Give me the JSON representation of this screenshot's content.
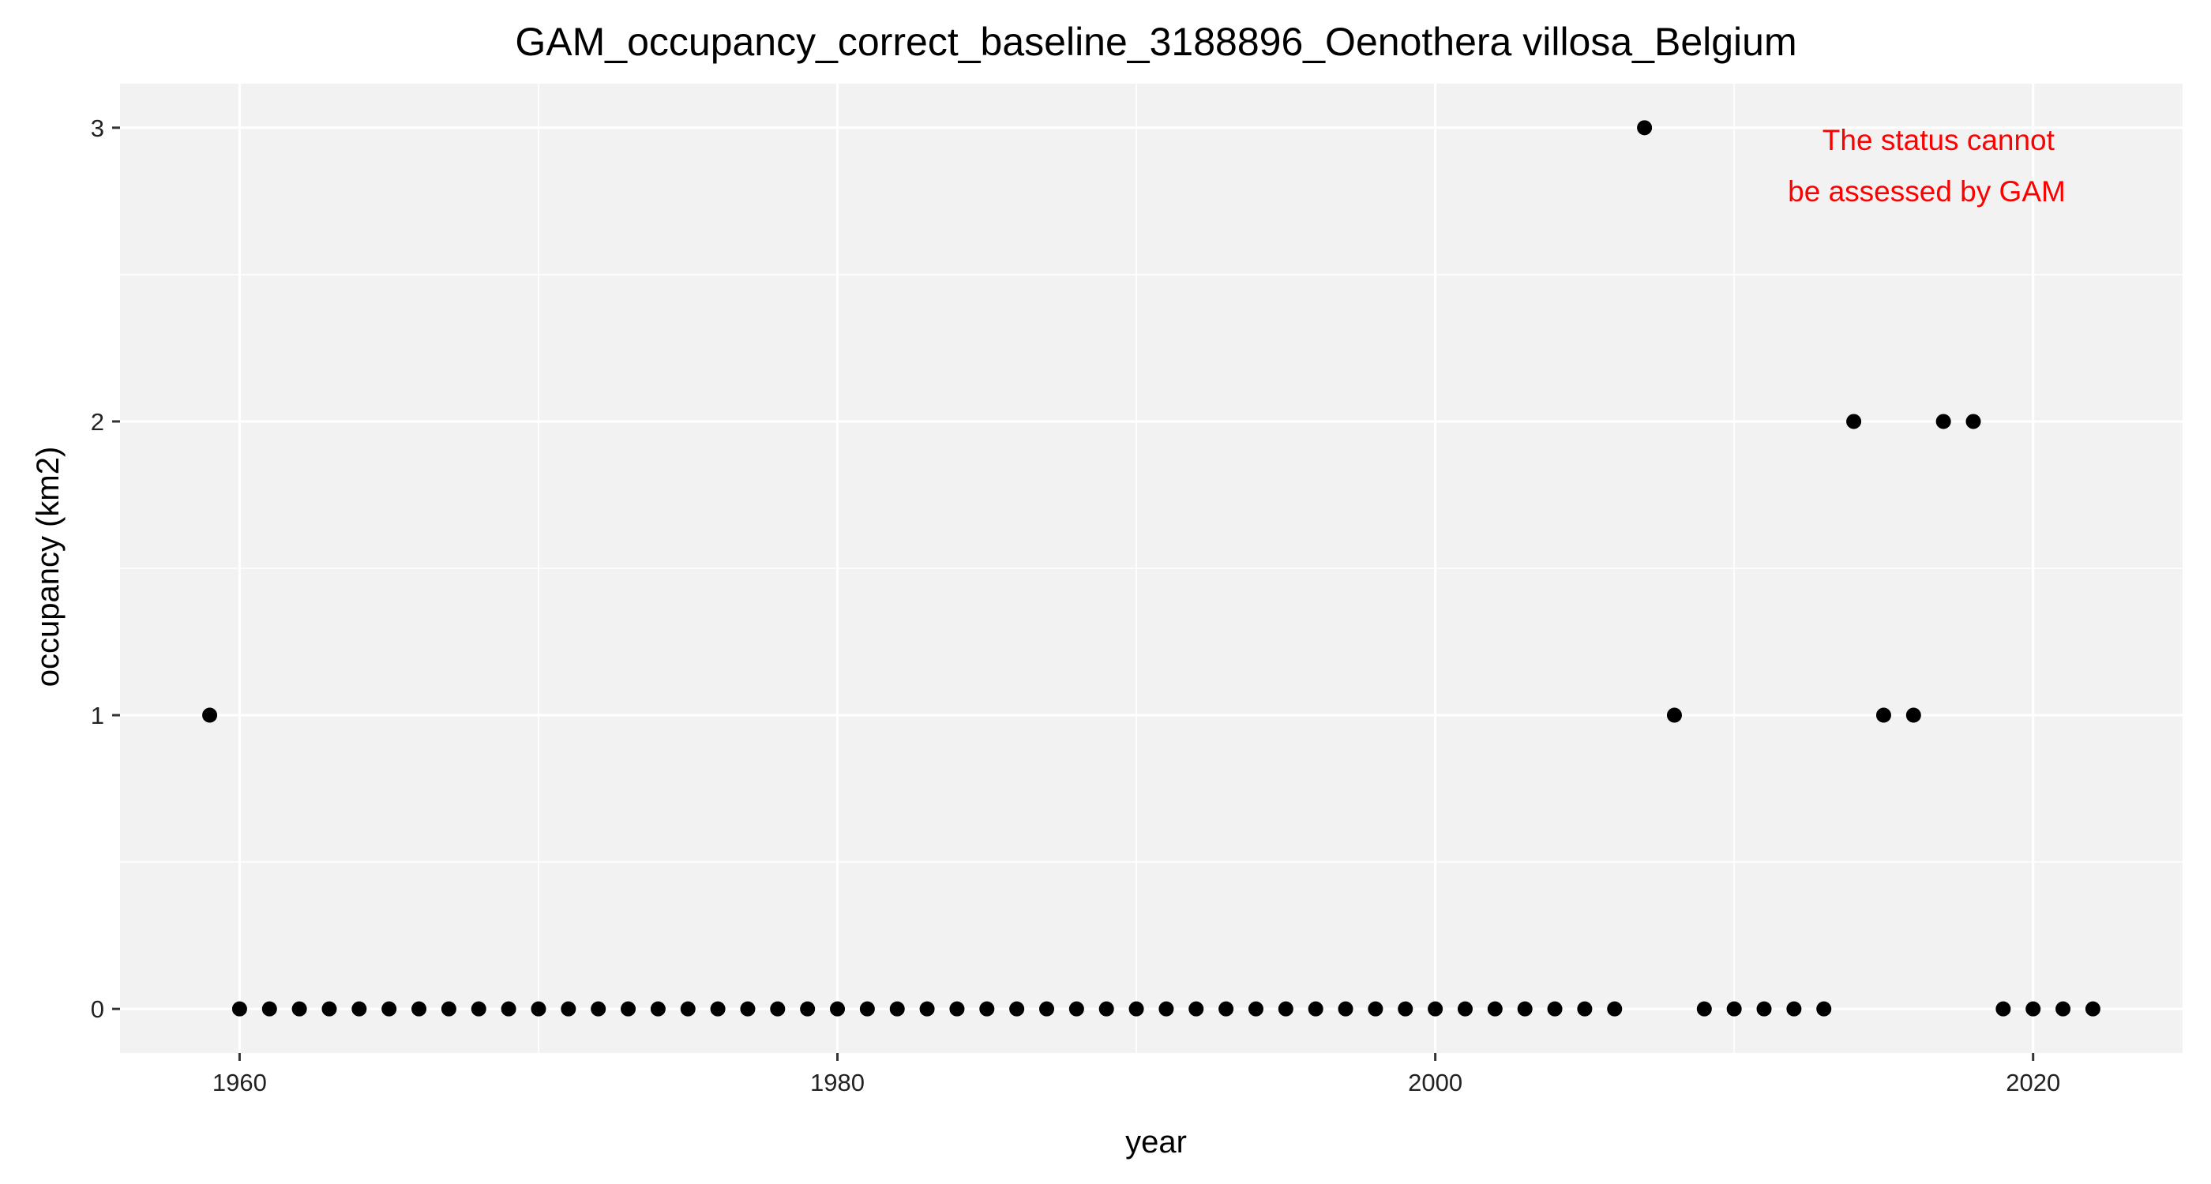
{
  "chart_data": {
    "type": "scatter",
    "title": "GAM_occupancy_correct_baseline_3188896_Oenothera villosa_Belgium",
    "xlabel": "year",
    "ylabel": "occupancy (km2)",
    "xlim": [
      1956,
      2025
    ],
    "ylim": [
      -0.15,
      3.15
    ],
    "x_ticks": [
      1960,
      1980,
      2000,
      2020
    ],
    "x_tick_labels": [
      "1960",
      "1980",
      "2000",
      "2020"
    ],
    "y_ticks": [
      0,
      1,
      2,
      3
    ],
    "y_tick_labels": [
      "0",
      "1",
      "2",
      "3"
    ],
    "grid": true,
    "legend": "none",
    "colors": {
      "panel": "#f2f2f2",
      "grid": "#ffffff",
      "point": "#000000",
      "annotation": "#ff0000"
    },
    "annotation": {
      "lines": [
        "The status cannot",
        "be assessed by GAM"
      ],
      "color": "#ff0000"
    },
    "x": [
      1959,
      1960,
      1961,
      1962,
      1963,
      1964,
      1965,
      1966,
      1967,
      1968,
      1969,
      1970,
      1971,
      1972,
      1973,
      1974,
      1975,
      1976,
      1977,
      1978,
      1979,
      1980,
      1981,
      1982,
      1983,
      1984,
      1985,
      1986,
      1987,
      1988,
      1989,
      1990,
      1991,
      1992,
      1993,
      1994,
      1995,
      1996,
      1997,
      1998,
      1999,
      2000,
      2001,
      2002,
      2003,
      2004,
      2005,
      2006,
      2007,
      2008,
      2009,
      2010,
      2011,
      2012,
      2013,
      2014,
      2015,
      2016,
      2017,
      2018,
      2019,
      2020,
      2021,
      2022
    ],
    "y": [
      1,
      0,
      0,
      0,
      0,
      0,
      0,
      0,
      0,
      0,
      0,
      0,
      0,
      0,
      0,
      0,
      0,
      0,
      0,
      0,
      0,
      0,
      0,
      0,
      0,
      0,
      0,
      0,
      0,
      0,
      0,
      0,
      0,
      0,
      0,
      0,
      0,
      0,
      0,
      0,
      0,
      0,
      0,
      0,
      0,
      0,
      0,
      0,
      3,
      1,
      0,
      0,
      0,
      0,
      0,
      2,
      1,
      1,
      2,
      2,
      0,
      0,
      0,
      0
    ]
  }
}
